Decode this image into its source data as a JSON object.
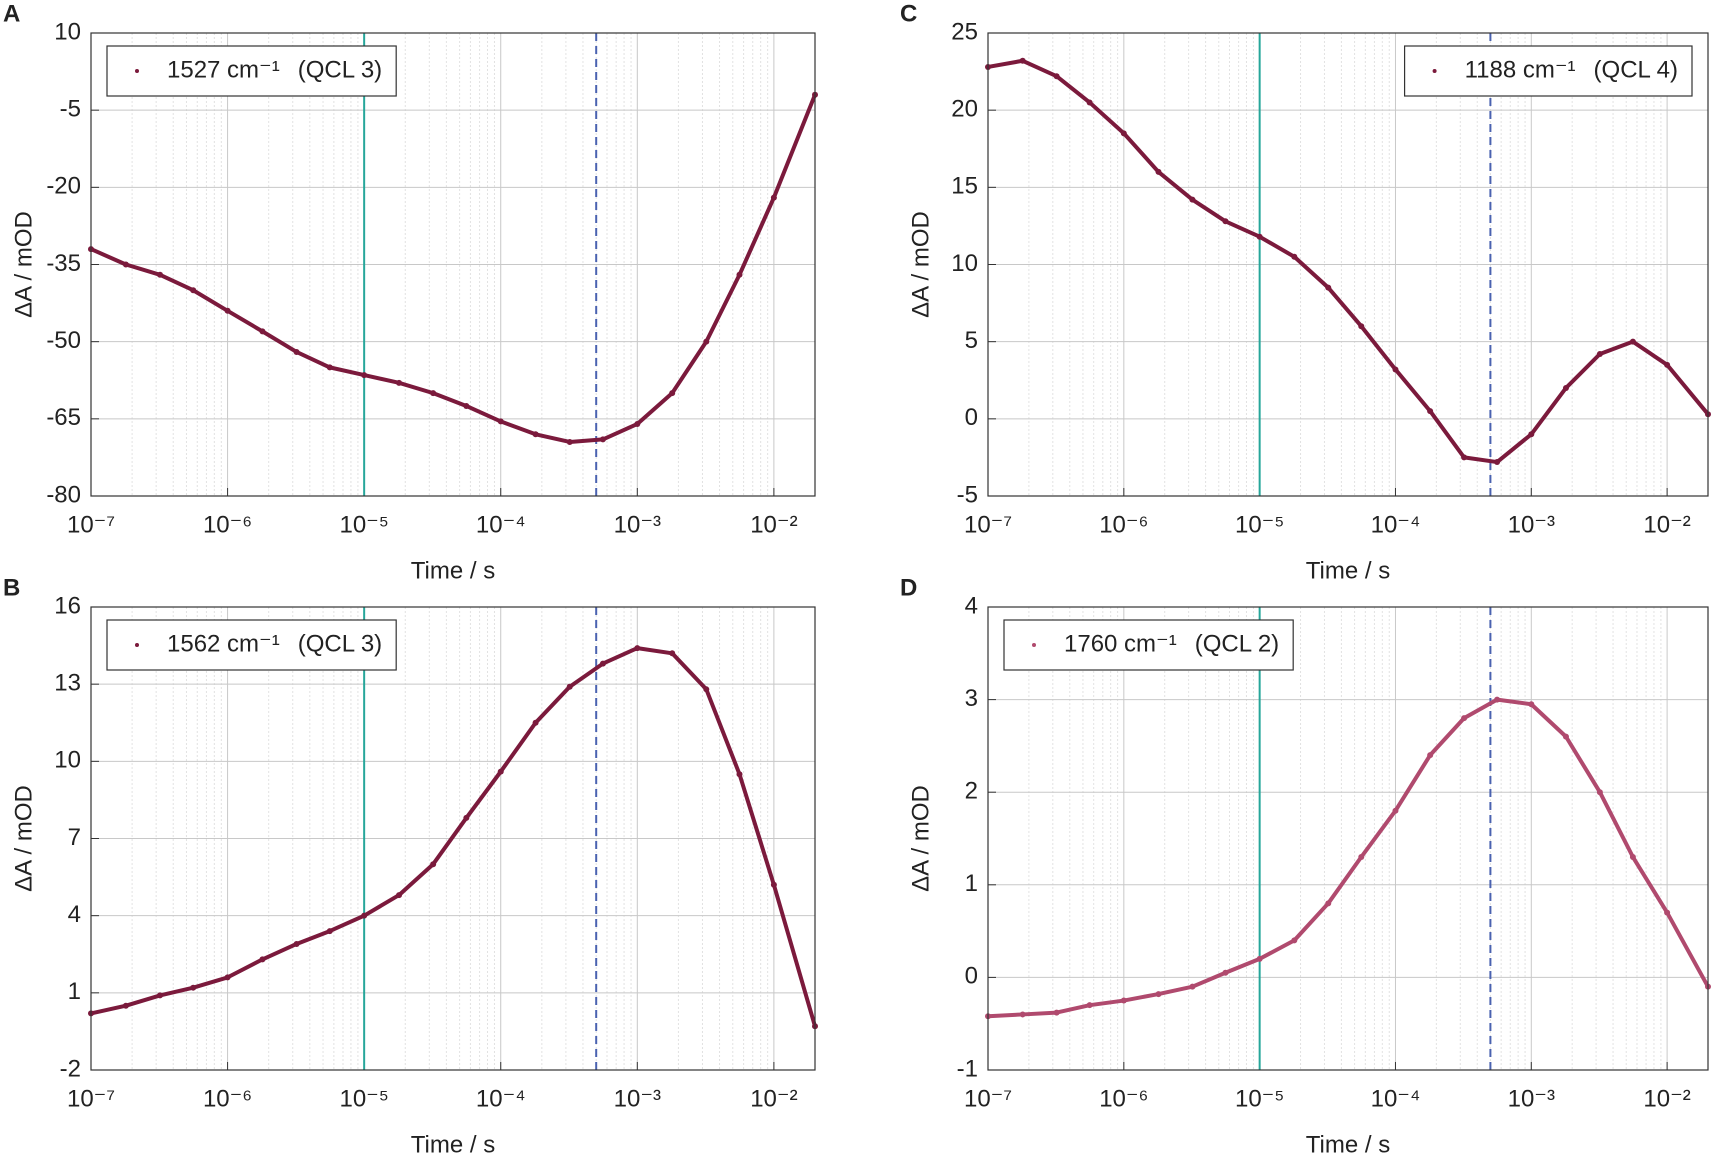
{
  "chart_data": [
    {
      "type": "scatter",
      "panel_label": "A",
      "xlabel": "Time / s",
      "ylabel": "ΔA / mOD",
      "xscale": "log",
      "xlim": [
        1e-07,
        0.02
      ],
      "xticks": [
        {
          "value": 1e-07,
          "label": "10⁻⁷"
        },
        {
          "value": 1e-06,
          "label": "10⁻⁶"
        },
        {
          "value": 1e-05,
          "label": "10⁻⁵"
        },
        {
          "value": 0.0001,
          "label": "10⁻⁴"
        },
        {
          "value": 0.001,
          "label": "10⁻³"
        },
        {
          "value": 0.01,
          "label": "10⁻²"
        }
      ],
      "ylim": [
        -80,
        10
      ],
      "yticks": [
        -80,
        -65,
        -50,
        -35,
        -20,
        -5,
        10
      ],
      "grid": true,
      "minor_grid": true,
      "legend": "upper left",
      "series": [
        {
          "name": "1527 cm⁻¹",
          "legend_note": "(QCL 3)",
          "color": "#7b1a3c",
          "x": [
            1e-07,
            1.8e-07,
            3.2e-07,
            5.6e-07,
            1e-06,
            1.8e-06,
            3.2e-06,
            5.6e-06,
            1e-05,
            1.8e-05,
            3.2e-05,
            5.6e-05,
            0.0001,
            0.00018,
            0.00032,
            0.00056,
            0.001,
            0.0018,
            0.0032,
            0.0056,
            0.01,
            0.02
          ],
          "values": [
            -32,
            -35,
            -37,
            -40,
            -44,
            -48,
            -52,
            -55,
            -56.5,
            -58,
            -60,
            -62.5,
            -65.5,
            -68,
            -69.5,
            -69,
            -66,
            -60,
            -50,
            -37,
            -22,
            -2
          ]
        }
      ],
      "vlines": [
        {
          "x": 1e-05,
          "color": "#26a69a",
          "dash": false
        },
        {
          "x": 0.0005,
          "color": "#4a62b0",
          "dash": true
        }
      ]
    },
    {
      "type": "scatter",
      "panel_label": "B",
      "xlabel": "Time / s",
      "ylabel": "ΔA / mOD",
      "xscale": "log",
      "xlim": [
        1e-07,
        0.02
      ],
      "xticks": [
        {
          "value": 1e-07,
          "label": "10⁻⁷"
        },
        {
          "value": 1e-06,
          "label": "10⁻⁶"
        },
        {
          "value": 1e-05,
          "label": "10⁻⁵"
        },
        {
          "value": 0.0001,
          "label": "10⁻⁴"
        },
        {
          "value": 0.001,
          "label": "10⁻³"
        },
        {
          "value": 0.01,
          "label": "10⁻²"
        }
      ],
      "ylim": [
        -2,
        16
      ],
      "yticks": [
        -2,
        1,
        4,
        7,
        10,
        13,
        16
      ],
      "grid": true,
      "minor_grid": true,
      "legend": "upper left",
      "series": [
        {
          "name": "1562 cm⁻¹",
          "legend_note": "(QCL 3)",
          "color": "#7b1a3c",
          "x": [
            1e-07,
            1.8e-07,
            3.2e-07,
            5.6e-07,
            1e-06,
            1.8e-06,
            3.2e-06,
            5.6e-06,
            1e-05,
            1.8e-05,
            3.2e-05,
            5.6e-05,
            0.0001,
            0.00018,
            0.00032,
            0.00056,
            0.001,
            0.0018,
            0.0032,
            0.0056,
            0.01,
            0.02
          ],
          "values": [
            0.2,
            0.5,
            0.9,
            1.2,
            1.6,
            2.3,
            2.9,
            3.4,
            4.0,
            4.8,
            6.0,
            7.8,
            9.6,
            11.5,
            12.9,
            13.8,
            14.4,
            14.2,
            12.8,
            9.5,
            5.2,
            -0.3
          ]
        }
      ],
      "vlines": [
        {
          "x": 1e-05,
          "color": "#26a69a",
          "dash": false
        },
        {
          "x": 0.0005,
          "color": "#4a62b0",
          "dash": true
        }
      ]
    },
    {
      "type": "scatter",
      "panel_label": "C",
      "xlabel": "Time / s",
      "ylabel": "ΔA / mOD",
      "xscale": "log",
      "xlim": [
        1e-07,
        0.02
      ],
      "xticks": [
        {
          "value": 1e-07,
          "label": "10⁻⁷"
        },
        {
          "value": 1e-06,
          "label": "10⁻⁶"
        },
        {
          "value": 1e-05,
          "label": "10⁻⁵"
        },
        {
          "value": 0.0001,
          "label": "10⁻⁴"
        },
        {
          "value": 0.001,
          "label": "10⁻³"
        },
        {
          "value": 0.01,
          "label": "10⁻²"
        }
      ],
      "ylim": [
        -5,
        25
      ],
      "yticks": [
        -5,
        0,
        5,
        10,
        15,
        20,
        25
      ],
      "grid": true,
      "minor_grid": true,
      "legend": "upper right",
      "series": [
        {
          "name": "1188 cm⁻¹",
          "legend_note": "(QCL 4)",
          "color": "#7b1a3c",
          "x": [
            1e-07,
            1.8e-07,
            3.2e-07,
            5.6e-07,
            1e-06,
            1.8e-06,
            3.2e-06,
            5.6e-06,
            1e-05,
            1.8e-05,
            3.2e-05,
            5.6e-05,
            0.0001,
            0.00018,
            0.00032,
            0.00056,
            0.001,
            0.0018,
            0.0032,
            0.0056,
            0.01,
            0.02
          ],
          "values": [
            22.8,
            23.2,
            22.2,
            20.5,
            18.5,
            16.0,
            14.2,
            12.8,
            11.8,
            10.5,
            8.5,
            6.0,
            3.2,
            0.5,
            -2.5,
            -2.8,
            -1.0,
            2.0,
            4.2,
            5.0,
            3.5,
            0.3
          ]
        }
      ],
      "vlines": [
        {
          "x": 1e-05,
          "color": "#26a69a",
          "dash": false
        },
        {
          "x": 0.0005,
          "color": "#4a62b0",
          "dash": true
        }
      ]
    },
    {
      "type": "scatter",
      "panel_label": "D",
      "xlabel": "Time / s",
      "ylabel": "ΔA / mOD",
      "xscale": "log",
      "xlim": [
        1e-07,
        0.02
      ],
      "xticks": [
        {
          "value": 1e-07,
          "label": "10⁻⁷"
        },
        {
          "value": 1e-06,
          "label": "10⁻⁶"
        },
        {
          "value": 1e-05,
          "label": "10⁻⁵"
        },
        {
          "value": 0.0001,
          "label": "10⁻⁴"
        },
        {
          "value": 0.001,
          "label": "10⁻³"
        },
        {
          "value": 0.01,
          "label": "10⁻²"
        }
      ],
      "ylim": [
        -1,
        4
      ],
      "yticks": [
        -1,
        0,
        1,
        2,
        3,
        4
      ],
      "grid": true,
      "minor_grid": true,
      "legend": "upper left",
      "series": [
        {
          "name": "1760 cm⁻¹",
          "legend_note": "(QCL 2)",
          "color": "#b04a6e",
          "x": [
            1e-07,
            1.8e-07,
            3.2e-07,
            5.6e-07,
            1e-06,
            1.8e-06,
            3.2e-06,
            5.6e-06,
            1e-05,
            1.8e-05,
            3.2e-05,
            5.6e-05,
            0.0001,
            0.00018,
            0.00032,
            0.00056,
            0.001,
            0.0018,
            0.0032,
            0.0056,
            0.01,
            0.02
          ],
          "values": [
            -0.42,
            -0.4,
            -0.38,
            -0.3,
            -0.25,
            -0.18,
            -0.1,
            0.05,
            0.2,
            0.4,
            0.8,
            1.3,
            1.8,
            2.4,
            2.8,
            3.0,
            2.95,
            2.6,
            2.0,
            1.3,
            0.7,
            -0.1
          ]
        }
      ],
      "vlines": [
        {
          "x": 1e-05,
          "color": "#26a69a",
          "dash": false
        },
        {
          "x": 0.0005,
          "color": "#4a62b0",
          "dash": true
        }
      ]
    }
  ]
}
